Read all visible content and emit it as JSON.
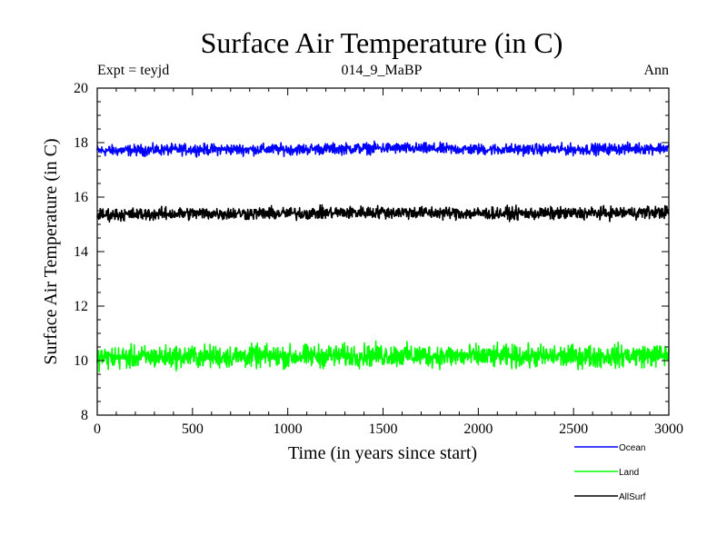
{
  "chart_data": {
    "type": "line",
    "title": "Surface Air Temperature (in C)",
    "subtitle": "014_9_MaBP",
    "expt_label": "Expt = teyjd",
    "period_label": "Ann",
    "xlabel": "Time (in years since start)",
    "ylabel": "Surface Air Temperature (in C)",
    "xlim": [
      0,
      3000
    ],
    "ylim": [
      8,
      20
    ],
    "x_ticks": [
      0,
      500,
      1000,
      1500,
      2000,
      2500,
      3000
    ],
    "y_ticks": [
      8,
      10,
      12,
      14,
      16,
      18,
      20
    ],
    "x_tick_labels": [
      "0",
      "500",
      "1000",
      "1500",
      "2000",
      "2500",
      "3000"
    ],
    "y_tick_labels": [
      "8",
      "10",
      "12",
      "14",
      "16",
      "18",
      "20"
    ],
    "grid": false,
    "legend_position": "bottom-right, below plot",
    "series": [
      {
        "name": "Ocean",
        "color": "#0000ff",
        "mean": 17.75,
        "noise_amplitude": 0.22,
        "x": [
          0,
          500,
          1000,
          1500,
          2000,
          2500,
          3000
        ],
        "values": [
          17.7,
          17.75,
          17.75,
          17.8,
          17.75,
          17.75,
          17.8
        ]
      },
      {
        "name": "Land",
        "color": "#00ff00",
        "mean": 10.15,
        "noise_amplitude": 0.45,
        "x": [
          0,
          500,
          1000,
          1500,
          2000,
          2500,
          3000
        ],
        "values": [
          10.1,
          10.15,
          10.15,
          10.2,
          10.15,
          10.15,
          10.2
        ]
      },
      {
        "name": "AllSurf",
        "color": "#000000",
        "mean": 15.4,
        "noise_amplitude": 0.25,
        "x": [
          0,
          500,
          1000,
          1500,
          2000,
          2500,
          3000
        ],
        "values": [
          15.35,
          15.4,
          15.4,
          15.45,
          15.4,
          15.4,
          15.45
        ]
      }
    ]
  }
}
